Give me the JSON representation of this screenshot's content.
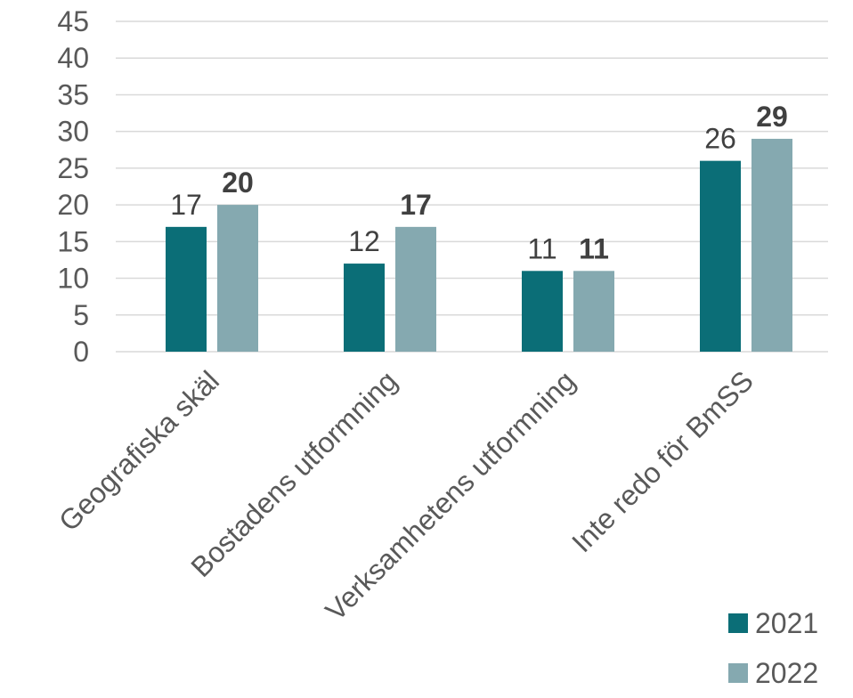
{
  "chart_data": {
    "type": "bar",
    "categories": [
      "Geografiska skäl",
      "Bostadens utformning",
      "Verksamhetens utformning",
      "Inte redo för BmSS"
    ],
    "series": [
      {
        "name": "2021",
        "values": [
          17,
          12,
          11,
          26
        ],
        "color": "#0b6e77",
        "label_bold": false
      },
      {
        "name": "2022",
        "values": [
          20,
          17,
          11,
          29
        ],
        "color": "#85a9b0",
        "label_bold": true
      }
    ],
    "ylim": [
      0,
      45
    ],
    "yticks": [
      "0",
      "5",
      "10",
      "15",
      "20",
      "25",
      "30",
      "35",
      "40",
      "45"
    ],
    "grid": true,
    "legend_position": "bottom-right"
  }
}
